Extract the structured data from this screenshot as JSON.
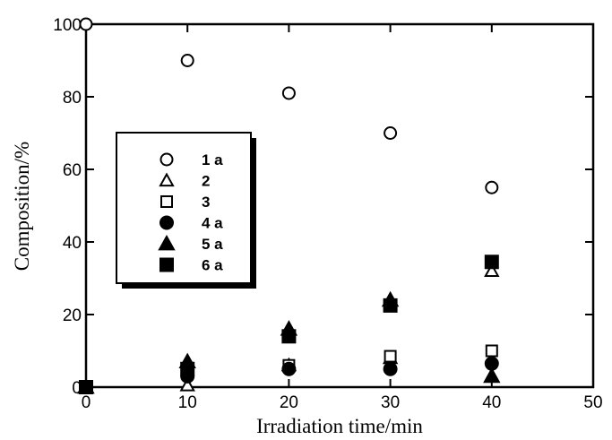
{
  "chart_data": {
    "type": "scatter",
    "xlabel": "Irradiation time/min",
    "ylabel": "Composition/%",
    "xlim": [
      0,
      50
    ],
    "ylim": [
      0,
      100
    ],
    "xticks": [
      0,
      10,
      20,
      30,
      40,
      50
    ],
    "yticks": [
      0,
      20,
      40,
      60,
      80,
      100
    ],
    "grid": false,
    "legend_position": "left",
    "series": [
      {
        "name": "1 a",
        "marker": "circle-open",
        "x": [
          0,
          10,
          20,
          30,
          40
        ],
        "y": [
          100,
          90,
          81,
          70,
          55
        ]
      },
      {
        "name": "2",
        "marker": "triangle-open",
        "x": [
          0,
          10,
          20,
          30,
          40
        ],
        "y": [
          0,
          0.5,
          6,
          8,
          32
        ]
      },
      {
        "name": "3",
        "marker": "square-open",
        "x": [
          0,
          10,
          20,
          30,
          40
        ],
        "y": [
          0,
          4,
          6,
          8.5,
          10
        ]
      },
      {
        "name": "4 a",
        "marker": "circle-filled",
        "x": [
          0,
          10,
          20,
          30,
          40
        ],
        "y": [
          0,
          3,
          5,
          5,
          6.5
        ]
      },
      {
        "name": "5 a",
        "marker": "triangle-filled",
        "x": [
          0,
          10,
          20,
          30,
          40
        ],
        "y": [
          0,
          7,
          16,
          24,
          3
        ]
      },
      {
        "name": "6 a",
        "marker": "square-filled",
        "x": [
          0,
          10,
          20,
          30,
          40
        ],
        "y": [
          0,
          5,
          14,
          22.5,
          34.5
        ]
      }
    ]
  }
}
